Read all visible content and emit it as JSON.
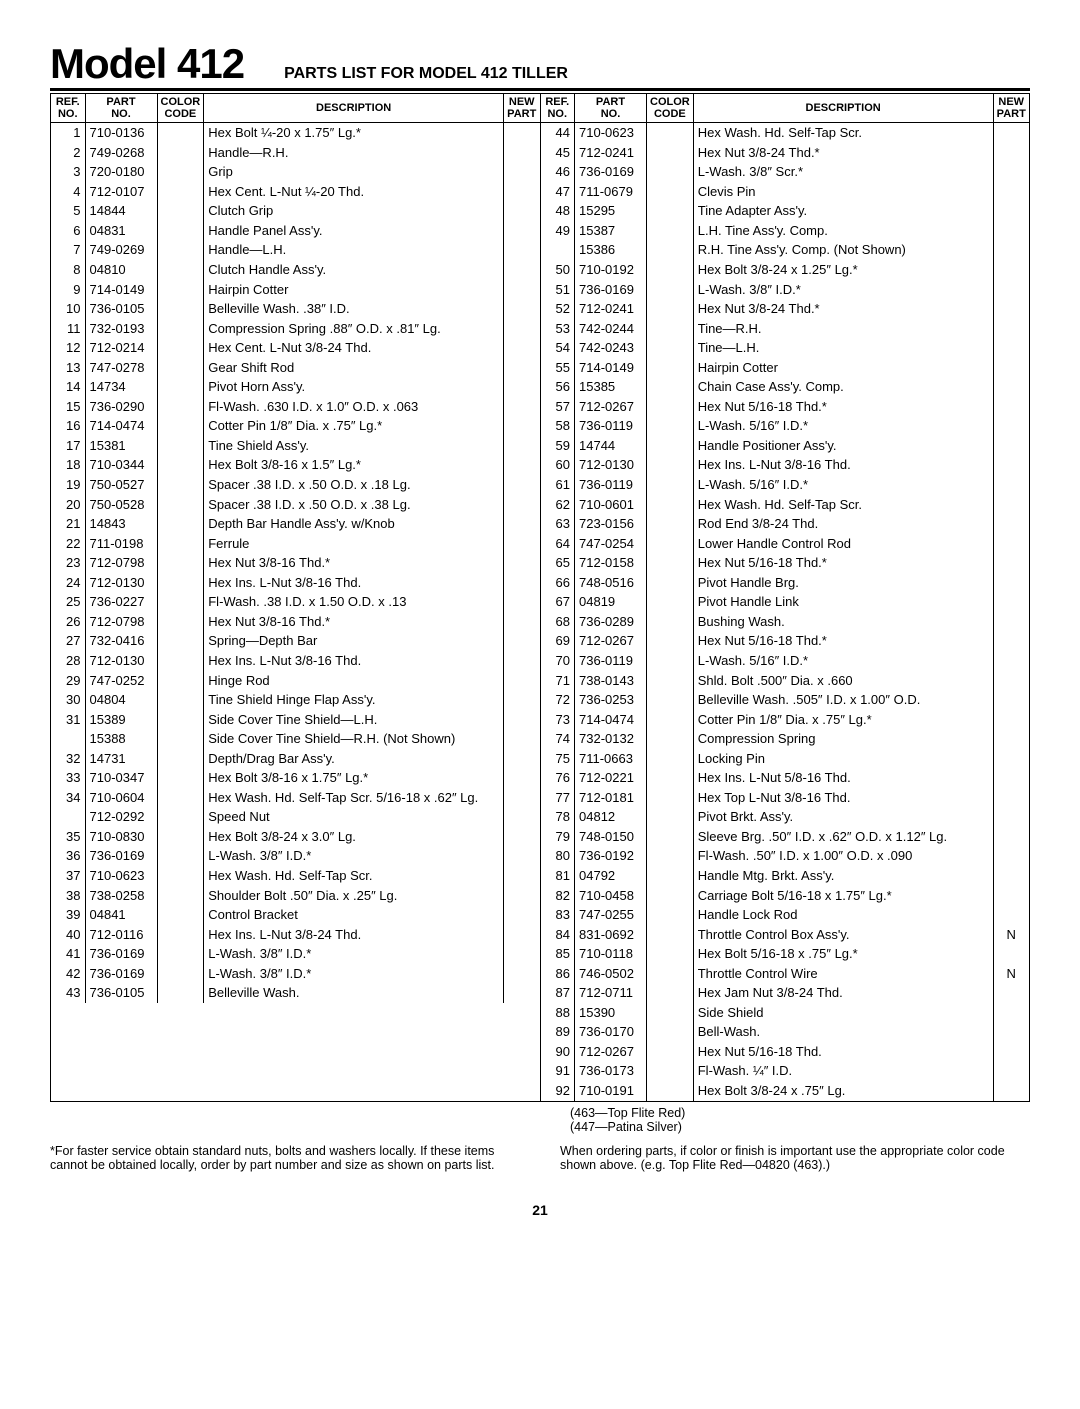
{
  "header": {
    "model": "Model 412",
    "subtitle": "PARTS LIST FOR MODEL 412 TILLER"
  },
  "columns": {
    "ref": "REF.\nNO.",
    "part": "PART\nNO.",
    "color": "COLOR\nCODE",
    "desc": "DESCRIPTION",
    "new": "NEW\nPART"
  },
  "left": [
    {
      "r": "1",
      "p": "710-0136",
      "d": "Hex Bolt ¼-20 x 1.75″ Lg.*"
    },
    {
      "r": "2",
      "p": "749-0268",
      "d": "Handle—R.H."
    },
    {
      "r": "3",
      "p": "720-0180",
      "d": "Grip"
    },
    {
      "r": "4",
      "p": "712-0107",
      "d": "Hex Cent. L-Nut ¼-20 Thd."
    },
    {
      "r": "5",
      "p": "14844",
      "d": "Clutch Grip"
    },
    {
      "r": "6",
      "p": "04831",
      "d": "Handle Panel Ass'y."
    },
    {
      "r": "7",
      "p": "749-0269",
      "d": "Handle—L.H."
    },
    {
      "r": "8",
      "p": "04810",
      "d": "Clutch Handle Ass'y."
    },
    {
      "r": "9",
      "p": "714-0149",
      "d": "Hairpin Cotter"
    },
    {
      "r": "10",
      "p": "736-0105",
      "d": "Belleville Wash. .38″ I.D."
    },
    {
      "r": "11",
      "p": "732-0193",
      "d": "Compression Spring .88″ O.D. x .81″ Lg."
    },
    {
      "r": "12",
      "p": "712-0214",
      "d": "Hex Cent. L-Nut 3/8-24 Thd."
    },
    {
      "r": "13",
      "p": "747-0278",
      "d": "Gear Shift Rod"
    },
    {
      "r": "14",
      "p": "14734",
      "d": "Pivot Horn Ass'y."
    },
    {
      "r": "15",
      "p": "736-0290",
      "d": "Fl-Wash. .630 I.D. x 1.0″ O.D. x .063"
    },
    {
      "r": "16",
      "p": "714-0474",
      "d": "Cotter Pin 1/8″ Dia. x .75″ Lg.*"
    },
    {
      "r": "17",
      "p": "15381",
      "d": "Tine Shield Ass'y."
    },
    {
      "r": "18",
      "p": "710-0344",
      "d": "Hex Bolt 3/8-16 x 1.5″ Lg.*"
    },
    {
      "r": "19",
      "p": "750-0527",
      "d": "Spacer .38 I.D. x .50 O.D. x .18 Lg."
    },
    {
      "r": "20",
      "p": "750-0528",
      "d": "Spacer .38 I.D. x .50 O.D. x .38 Lg."
    },
    {
      "r": "21",
      "p": "14843",
      "d": "Depth Bar Handle Ass'y. w/Knob"
    },
    {
      "r": "22",
      "p": "711-0198",
      "d": "Ferrule"
    },
    {
      "r": "23",
      "p": "712-0798",
      "d": "Hex Nut 3/8-16 Thd.*"
    },
    {
      "r": "24",
      "p": "712-0130",
      "d": "Hex Ins. L-Nut 3/8-16 Thd."
    },
    {
      "r": "25",
      "p": "736-0227",
      "d": "Fl-Wash. .38 I.D. x 1.50 O.D. x .13"
    },
    {
      "r": "26",
      "p": "712-0798",
      "d": "Hex Nut 3/8-16 Thd.*"
    },
    {
      "r": "27",
      "p": "732-0416",
      "d": "Spring—Depth Bar"
    },
    {
      "r": "28",
      "p": "712-0130",
      "d": "Hex Ins. L-Nut 3/8-16 Thd."
    },
    {
      "r": "29",
      "p": "747-0252",
      "d": "Hinge Rod"
    },
    {
      "r": "30",
      "p": "04804",
      "d": "Tine Shield Hinge Flap Ass'y."
    },
    {
      "r": "31",
      "p": "15389",
      "d": "Side Cover Tine Shield—L.H."
    },
    {
      "r": "",
      "p": "15388",
      "d": "Side Cover Tine Shield—R.H. (Not Shown)"
    },
    {
      "r": "32",
      "p": "14731",
      "d": "Depth/Drag Bar Ass'y."
    },
    {
      "r": "33",
      "p": "710-0347",
      "d": "Hex Bolt 3/8-16 x 1.75″ Lg.*"
    },
    {
      "r": "34",
      "p": "710-0604",
      "d": "Hex Wash. Hd. Self-Tap Scr. 5/16-18 x .62″ Lg."
    },
    {
      "r": "",
      "p": "712-0292",
      "d": "Speed Nut"
    },
    {
      "r": "35",
      "p": "710-0830",
      "d": "Hex Bolt 3/8-24 x 3.0″ Lg."
    },
    {
      "r": "36",
      "p": "736-0169",
      "d": "L-Wash. 3/8″ I.D.*"
    },
    {
      "r": "37",
      "p": "710-0623",
      "d": "Hex Wash. Hd. Self-Tap Scr."
    },
    {
      "r": "38",
      "p": "738-0258",
      "d": "Shoulder Bolt .50″ Dia. x .25″ Lg."
    },
    {
      "r": "39",
      "p": "04841",
      "d": "Control Bracket"
    },
    {
      "r": "40",
      "p": "712-0116",
      "d": "Hex Ins. L-Nut 3/8-24 Thd."
    },
    {
      "r": "41",
      "p": "736-0169",
      "d": "L-Wash. 3/8″ I.D.*"
    },
    {
      "r": "42",
      "p": "736-0169",
      "d": "L-Wash. 3/8″ I.D.*"
    },
    {
      "r": "43",
      "p": "736-0105",
      "d": "Belleville Wash."
    }
  ],
  "right": [
    {
      "r": "44",
      "p": "710-0623",
      "d": "Hex Wash. Hd. Self-Tap Scr."
    },
    {
      "r": "45",
      "p": "712-0241",
      "d": "Hex Nut 3/8-24 Thd.*"
    },
    {
      "r": "46",
      "p": "736-0169",
      "d": "L-Wash. 3/8″ Scr.*"
    },
    {
      "r": "47",
      "p": "711-0679",
      "d": "Clevis Pin"
    },
    {
      "r": "48",
      "p": "15295",
      "d": "Tine Adapter Ass'y."
    },
    {
      "r": "49",
      "p": "15387",
      "d": "L.H. Tine Ass'y. Comp."
    },
    {
      "r": "",
      "p": "15386",
      "d": "R.H. Tine Ass'y. Comp. (Not Shown)"
    },
    {
      "r": "50",
      "p": "710-0192",
      "d": "Hex Bolt 3/8-24 x 1.25″ Lg.*"
    },
    {
      "r": "51",
      "p": "736-0169",
      "d": "L-Wash. 3/8″ I.D.*"
    },
    {
      "r": "52",
      "p": "712-0241",
      "d": "Hex Nut 3/8-24 Thd.*"
    },
    {
      "r": "53",
      "p": "742-0244",
      "d": "Tine—R.H."
    },
    {
      "r": "54",
      "p": "742-0243",
      "d": "Tine—L.H."
    },
    {
      "r": "55",
      "p": "714-0149",
      "d": "Hairpin Cotter"
    },
    {
      "r": "56",
      "p": "15385",
      "d": "Chain Case Ass'y. Comp."
    },
    {
      "r": "57",
      "p": "712-0267",
      "d": "Hex Nut 5/16-18 Thd.*"
    },
    {
      "r": "58",
      "p": "736-0119",
      "d": "L-Wash. 5/16″ I.D.*"
    },
    {
      "r": "59",
      "p": "14744",
      "d": "Handle Positioner Ass'y."
    },
    {
      "r": "60",
      "p": "712-0130",
      "d": "Hex Ins. L-Nut 3/8-16 Thd."
    },
    {
      "r": "61",
      "p": "736-0119",
      "d": "L-Wash. 5/16″ I.D.*"
    },
    {
      "r": "62",
      "p": "710-0601",
      "d": "Hex Wash. Hd. Self-Tap Scr."
    },
    {
      "r": "63",
      "p": "723-0156",
      "d": "Rod End 3/8-24 Thd."
    },
    {
      "r": "64",
      "p": "747-0254",
      "d": "Lower Handle Control Rod"
    },
    {
      "r": "65",
      "p": "712-0158",
      "d": "Hex Nut 5/16-18 Thd.*"
    },
    {
      "r": "66",
      "p": "748-0516",
      "d": "Pivot Handle Brg."
    },
    {
      "r": "67",
      "p": "04819",
      "d": "Pivot Handle Link"
    },
    {
      "r": "68",
      "p": "736-0289",
      "d": "Bushing Wash."
    },
    {
      "r": "69",
      "p": "712-0267",
      "d": "Hex Nut 5/16-18 Thd.*"
    },
    {
      "r": "70",
      "p": "736-0119",
      "d": "L-Wash. 5/16″ I.D.*"
    },
    {
      "r": "71",
      "p": "738-0143",
      "d": "Shld. Bolt .500″ Dia. x .660"
    },
    {
      "r": "72",
      "p": "736-0253",
      "d": "Belleville Wash. .505″ I.D. x 1.00″ O.D."
    },
    {
      "r": "73",
      "p": "714-0474",
      "d": "Cotter Pin 1/8″ Dia. x .75″ Lg.*"
    },
    {
      "r": "74",
      "p": "732-0132",
      "d": "Compression Spring"
    },
    {
      "r": "75",
      "p": "711-0663",
      "d": "Locking Pin"
    },
    {
      "r": "76",
      "p": "712-0221",
      "d": "Hex Ins. L-Nut 5/8-16 Thd."
    },
    {
      "r": "77",
      "p": "712-0181",
      "d": "Hex Top L-Nut 3/8-16 Thd."
    },
    {
      "r": "78",
      "p": "04812",
      "d": "Pivot Brkt. Ass'y."
    },
    {
      "r": "79",
      "p": "748-0150",
      "d": "Sleeve Brg. .50″ I.D. x .62″ O.D. x 1.12″ Lg."
    },
    {
      "r": "80",
      "p": "736-0192",
      "d": "Fl-Wash. .50″ I.D. x 1.00″ O.D. x .090"
    },
    {
      "r": "81",
      "p": "04792",
      "d": "Handle Mtg. Brkt. Ass'y."
    },
    {
      "r": "82",
      "p": "710-0458",
      "d": "Carriage Bolt 5/16-18 x 1.75″ Lg.*"
    },
    {
      "r": "83",
      "p": "747-0255",
      "d": "Handle Lock Rod"
    },
    {
      "r": "84",
      "p": "831-0692",
      "d": "Throttle Control Box Ass'y.",
      "n": "N"
    },
    {
      "r": "85",
      "p": "710-0118",
      "d": "Hex Bolt 5/16-18 x .75″ Lg.*"
    },
    {
      "r": "86",
      "p": "746-0502",
      "d": "Throttle Control Wire",
      "n": "N"
    },
    {
      "r": "87",
      "p": "712-0711",
      "d": "Hex Jam Nut 3/8-24 Thd."
    },
    {
      "r": "88",
      "p": "15390",
      "d": "Side Shield"
    },
    {
      "r": "89",
      "p": "736-0170",
      "d": "Bell-Wash."
    },
    {
      "r": "90",
      "p": "712-0267",
      "d": "Hex Nut 5/16-18 Thd."
    },
    {
      "r": "91",
      "p": "736-0173",
      "d": "Fl-Wash. ¼″ I.D."
    },
    {
      "r": "92",
      "p": "710-0191",
      "d": "Hex Bolt 3/8-24 x .75″ Lg."
    }
  ],
  "color_codes": {
    "a": "(463—Top Flite Red)",
    "b": "(447—Patina Silver)"
  },
  "footnotes": {
    "left": "*For faster service obtain standard nuts, bolts and washers locally. If these items cannot be obtained locally, order by part number and size as shown on parts list.",
    "right": "When ordering parts, if color or finish is important use the appropriate color code shown above. (e.g. Top Flite Red—04820 (463).)"
  },
  "page": "21"
}
